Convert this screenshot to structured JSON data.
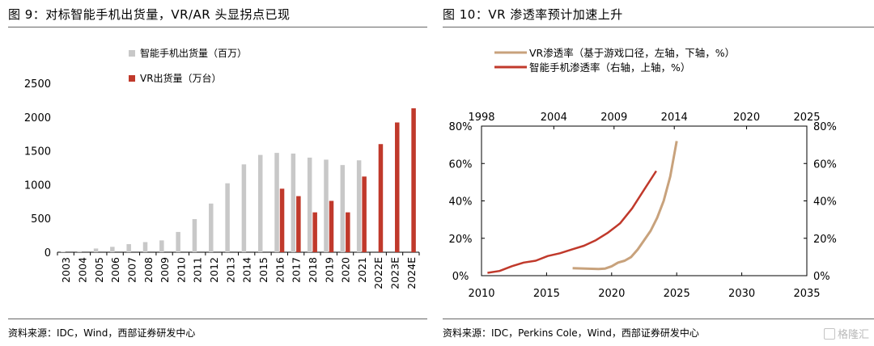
{
  "left": {
    "figure_title": "图 9：对标智能手机出货量，VR/AR 头显拐点已现",
    "source": "资料来源：IDC，Wind，西部证券研发中心",
    "colors": {
      "smartphone": "#c8c8c8",
      "vr": "#c0392b"
    },
    "chart_data": {
      "type": "bar",
      "categories": [
        "2003",
        "2004",
        "2005",
        "2006",
        "2007",
        "2008",
        "2009",
        "2010",
        "2011",
        "2012",
        "2013",
        "2014",
        "2015",
        "2016",
        "2017",
        "2018",
        "2019",
        "2020",
        "2021",
        "2022E",
        "2023E",
        "2024E"
      ],
      "series": [
        {
          "name": "智能手机出货量（百万）",
          "values": [
            10,
            15,
            55,
            80,
            120,
            150,
            175,
            300,
            490,
            720,
            1020,
            1300,
            1440,
            1470,
            1460,
            1400,
            1370,
            1290,
            1360,
            null,
            null,
            null
          ]
        },
        {
          "name": "VR出货量（万台）",
          "values": [
            null,
            null,
            null,
            null,
            null,
            null,
            null,
            null,
            null,
            null,
            null,
            null,
            null,
            940,
            830,
            590,
            760,
            590,
            1120,
            1600,
            1920,
            2130
          ]
        }
      ],
      "y_ticks": [
        "0",
        "500",
        "1000",
        "1500",
        "2000",
        "2500"
      ],
      "ylim": [
        0,
        2500
      ],
      "legend_position": "top-center",
      "grid": false
    }
  },
  "right": {
    "figure_title": "图 10：VR 渗透率预计加速上升",
    "source": "资料来源：IDC，Perkins Cole，Wind，西部证券研发中心",
    "colors": {
      "vr": "#c8a27c",
      "smartphone": "#c0392b"
    },
    "chart_data": {
      "type": "line",
      "series": [
        {
          "name": "VR渗透率（基于游戏口径，左轴，下轴，%）",
          "axes": "left-bottom",
          "x": [
            2017,
            2018,
            2019,
            2019.5,
            2020,
            2020.5,
            2021,
            2021.5,
            2022,
            2022.5,
            2023,
            2023.5,
            2024,
            2024.5,
            2025
          ],
          "y": [
            4,
            3.8,
            3.6,
            3.8,
            5,
            7,
            8,
            10,
            14,
            19,
            24,
            31,
            40,
            53,
            72
          ]
        },
        {
          "name": "智能手机渗透率（右轴，上轴，%）",
          "axes": "right-top",
          "x": [
            1998.5,
            1999.5,
            2000.5,
            2001.5,
            2002.5,
            2003.5,
            2004.5,
            2005.5,
            2006.5,
            2007.5,
            2008.5,
            2009.5,
            2010.5,
            2011.5,
            2012.5
          ],
          "y": [
            1.5,
            2.5,
            5,
            7,
            8,
            10.5,
            12,
            14,
            16,
            19,
            23,
            28,
            36,
            46,
            56
          ]
        }
      ],
      "bottom_axis": {
        "ticks": [
          "2010",
          "2015",
          "2020",
          "2025",
          "2030",
          "2035"
        ],
        "range": [
          2010,
          2035
        ]
      },
      "top_axis": {
        "ticks": [
          "1998",
          "2004",
          "2009",
          "2014",
          "2020",
          "2025"
        ],
        "range": [
          1998,
          2025
        ]
      },
      "left_axis": {
        "ticks": [
          "0%",
          "20%",
          "40%",
          "60%",
          "80%"
        ],
        "range": [
          0,
          80
        ]
      },
      "right_axis": {
        "ticks": [
          "0%",
          "20%",
          "40%",
          "60%",
          "80%"
        ],
        "range": [
          0,
          80
        ]
      },
      "legend_position": "top-left",
      "grid": false
    }
  },
  "watermark": "格隆汇"
}
